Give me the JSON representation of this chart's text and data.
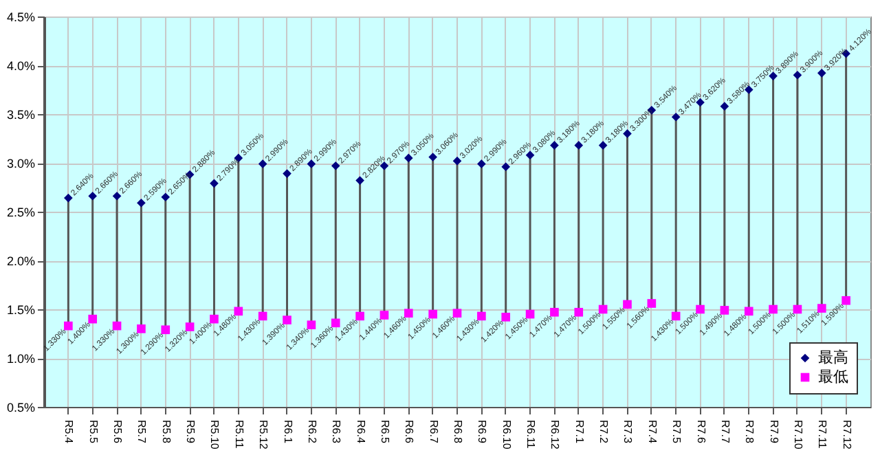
{
  "chart_data": {
    "type": "scatter",
    "categories": [
      "R5.4",
      "R5.5",
      "R5.6",
      "R5.7",
      "R5.8",
      "R5.9",
      "R5.10",
      "R5.11",
      "R5.12",
      "R6.1",
      "R6.2",
      "R6.3",
      "R6.4",
      "R6.5",
      "R6.6",
      "R6.7",
      "R6.8",
      "R6.9",
      "R6.10",
      "R6.11",
      "R6.12",
      "R7.1",
      "R7.2",
      "R7.3",
      "R7.4",
      "R7.5",
      "R7.6",
      "R7.7",
      "R7.8",
      "R7.9",
      "R7.10",
      "R7.11",
      "R7.12"
    ],
    "series": [
      {
        "name": "最高",
        "color": "#000080",
        "marker": "diamond",
        "values": [
          2.64,
          2.66,
          2.66,
          2.59,
          2.65,
          2.88,
          2.79,
          3.05,
          2.99,
          2.89,
          2.99,
          2.97,
          2.82,
          2.97,
          3.05,
          3.06,
          3.02,
          2.99,
          2.96,
          3.08,
          3.18,
          3.18,
          3.18,
          3.3,
          3.54,
          3.47,
          3.62,
          3.58,
          3.75,
          3.89,
          3.9,
          3.92,
          4.12
        ],
        "value_labels": [
          "2.640%",
          "2.660%",
          "2.660%",
          "2.590%",
          "2.650%",
          "2.880%",
          "2.790%",
          "3.050%",
          "2.990%",
          "2.890%",
          "2.990%",
          "2.970%",
          "2.820%",
          "2.970%",
          "3.050%",
          "3.060%",
          "3.020%",
          "2.990%",
          "2.960%",
          "3.080%",
          "3.180%",
          "3.180%",
          "3.180%",
          "3.300%",
          "3.540%",
          "3.470%",
          "3.620%",
          "3.580%",
          "3.750%",
          "3.890%",
          "3.900%",
          "3.920%",
          "4.120%"
        ]
      },
      {
        "name": "最低",
        "color": "#ff00ff",
        "marker": "square",
        "values": [
          1.33,
          1.4,
          1.33,
          1.3,
          1.29,
          1.32,
          1.4,
          1.48,
          1.43,
          1.39,
          1.34,
          1.36,
          1.43,
          1.44,
          1.46,
          1.45,
          1.46,
          1.43,
          1.42,
          1.45,
          1.47,
          1.47,
          1.5,
          1.55,
          1.56,
          1.43,
          1.5,
          1.49,
          1.48,
          1.5,
          1.5,
          1.51,
          1.59
        ],
        "value_labels": [
          "1.330%",
          "1.400%",
          "1.330%",
          "1.300%",
          "1.290%",
          "1.320%",
          "1.400%",
          "1.480%",
          "1.430%",
          "1.390%",
          "1.340%",
          "1.360%",
          "1.430%",
          "1.440%",
          "1.460%",
          "1.450%",
          "1.460%",
          "1.430%",
          "1.420%",
          "1.450%",
          "1.470%",
          "1.470%",
          "1.500%",
          "1.550%",
          "1.560%",
          "1.430%",
          "1.500%",
          "1.490%",
          "1.480%",
          "1.500%",
          "1.500%",
          "1.510%",
          "1.590%"
        ]
      }
    ],
    "ylim": [
      0.5,
      4.5
    ],
    "yticks": [
      {
        "value": 0.5,
        "label": "0.5%"
      },
      {
        "value": 1.0,
        "label": "1.0%"
      },
      {
        "value": 1.5,
        "label": "1.5%"
      },
      {
        "value": 2.0,
        "label": "2.0%"
      },
      {
        "value": 2.5,
        "label": "2.5%"
      },
      {
        "value": 3.0,
        "label": "3.0%"
      },
      {
        "value": 3.5,
        "label": "3.5%"
      },
      {
        "value": 4.0,
        "label": "4.0%"
      },
      {
        "value": 4.5,
        "label": "4.5%"
      }
    ],
    "grid": true,
    "legend": "bottom right"
  }
}
